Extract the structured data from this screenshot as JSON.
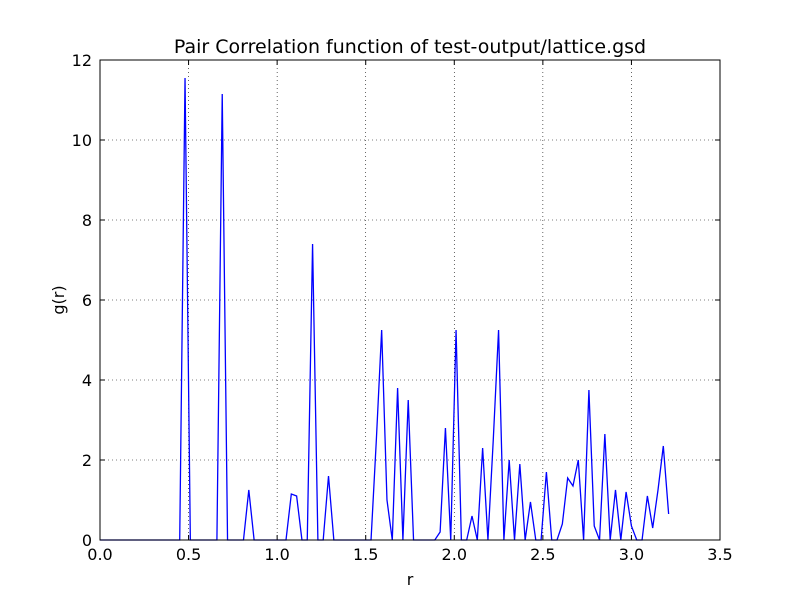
{
  "chart_data": {
    "type": "line",
    "title": "Pair Correlation function of test-output/lattice.gsd",
    "xlabel": "r",
    "ylabel": "g(r)",
    "xlim": [
      0.0,
      3.5
    ],
    "ylim": [
      0,
      12
    ],
    "xticks": [
      "0.0",
      "0.5",
      "1.0",
      "1.5",
      "2.0",
      "2.5",
      "3.0",
      "3.5"
    ],
    "yticks": [
      "0",
      "2",
      "4",
      "6",
      "8",
      "10",
      "12"
    ],
    "grid": true,
    "grid_style": "dotted",
    "series": [
      {
        "color": "#0000ff",
        "x": [
          0.0,
          0.45,
          0.48,
          0.51,
          0.54,
          0.66,
          0.69,
          0.72,
          0.81,
          0.84,
          0.87,
          1.05,
          1.08,
          1.11,
          1.14,
          1.17,
          1.2,
          1.23,
          1.26,
          1.29,
          1.32,
          1.53,
          1.56,
          1.59,
          1.62,
          1.65,
          1.68,
          1.71,
          1.74,
          1.77,
          1.89,
          1.92,
          1.95,
          1.98,
          2.01,
          2.04,
          2.07,
          2.1,
          2.13,
          2.16,
          2.19,
          2.22,
          2.25,
          2.28,
          2.31,
          2.34,
          2.37,
          2.4,
          2.43,
          2.46,
          2.49,
          2.52,
          2.55,
          2.58,
          2.61,
          2.64,
          2.67,
          2.7,
          2.73,
          2.76,
          2.79,
          2.82,
          2.85,
          2.88,
          2.91,
          2.94,
          2.97,
          3.0,
          3.03,
          3.06,
          3.09,
          3.12,
          3.15,
          3.18,
          3.21
        ],
        "y": [
          0,
          0,
          11.55,
          0,
          0,
          0,
          11.15,
          0,
          0,
          1.25,
          0,
          0,
          1.15,
          1.1,
          0,
          0,
          7.4,
          0,
          0,
          1.6,
          0,
          0,
          2.5,
          5.25,
          1.0,
          0,
          3.8,
          0,
          3.5,
          0,
          0,
          0.2,
          2.8,
          0,
          5.25,
          0,
          0,
          0.6,
          0,
          2.3,
          0,
          2.5,
          5.25,
          0,
          2.0,
          0,
          1.9,
          0,
          0.95,
          0,
          0,
          1.7,
          0,
          0,
          0.4,
          1.55,
          1.35,
          2.0,
          0,
          3.75,
          0.35,
          0,
          2.65,
          0,
          1.25,
          0,
          1.2,
          0.35,
          0,
          0,
          1.1,
          0.3,
          1.25,
          2.35,
          0.65
        ]
      }
    ]
  }
}
